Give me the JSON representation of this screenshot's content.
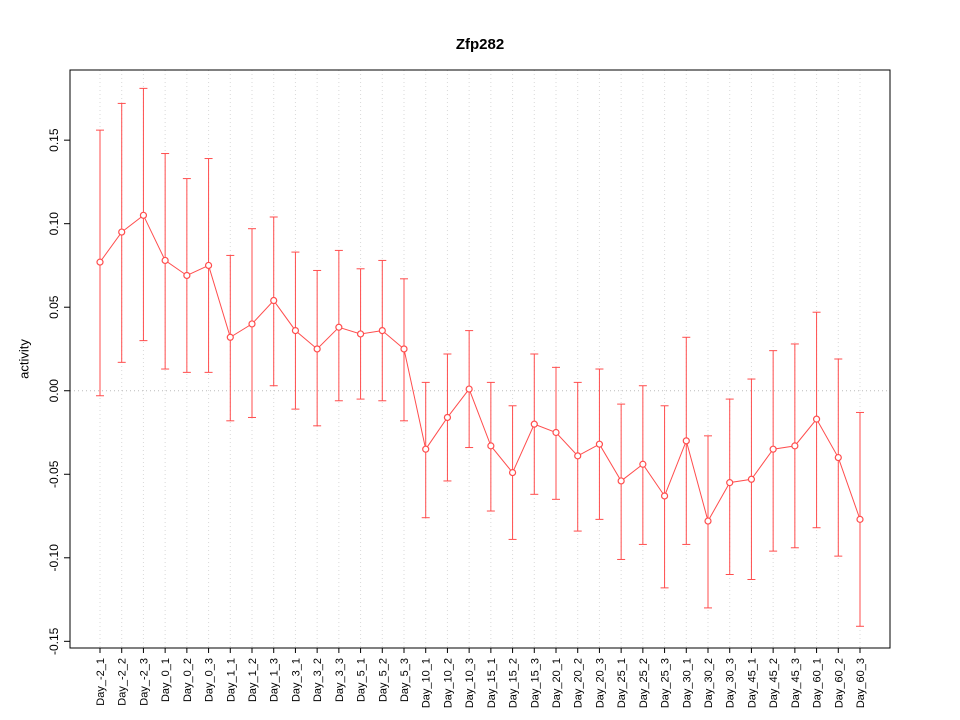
{
  "chart_data": {
    "type": "line",
    "title": "Zfp282",
    "xlabel": "",
    "ylabel": "activity",
    "ylim": [
      -0.154,
      0.192
    ],
    "yticks": [
      -0.15,
      -0.1,
      -0.05,
      0.0,
      0.05,
      0.1,
      0.15
    ],
    "grid": "vertical dotted gridline at each category; horizontal dotted line at y=0",
    "legend": "none",
    "series_color": "#ff4d4d",
    "grid_color": "#d9d9d9",
    "zero_line_color": "#bbbbbb",
    "axis_color": "#000000",
    "marker": "open-circle",
    "error_bars": true,
    "categories": [
      "Day_-2_1",
      "Day_-2_2",
      "Day_-2_3",
      "Day_0_1",
      "Day_0_2",
      "Day_0_3",
      "Day_1_1",
      "Day_1_2",
      "Day_1_3",
      "Day_3_1",
      "Day_3_2",
      "Day_3_3",
      "Day_5_1",
      "Day_5_2",
      "Day_5_3",
      "Day_10_1",
      "Day_10_2",
      "Day_10_3",
      "Day_15_1",
      "Day_15_2",
      "Day_15_3",
      "Day_20_1",
      "Day_20_2",
      "Day_20_3",
      "Day_25_1",
      "Day_25_2",
      "Day_25_3",
      "Day_30_1",
      "Day_30_2",
      "Day_30_3",
      "Day_45_1",
      "Day_45_2",
      "Day_45_3",
      "Day_60_1",
      "Day_60_2",
      "Day_60_3"
    ],
    "means": [
      0.077,
      0.095,
      0.105,
      0.078,
      0.069,
      0.075,
      0.032,
      0.04,
      0.054,
      0.036,
      0.025,
      0.038,
      0.034,
      0.036,
      0.025,
      -0.035,
      -0.016,
      0.001,
      -0.033,
      -0.049,
      -0.02,
      -0.025,
      -0.039,
      -0.032,
      -0.054,
      -0.044,
      -0.063,
      -0.03,
      -0.078,
      -0.055,
      -0.053,
      -0.035,
      -0.033,
      -0.017,
      -0.04,
      -0.077
    ],
    "lower": [
      -0.003,
      0.017,
      0.03,
      0.013,
      0.011,
      0.011,
      -0.018,
      -0.016,
      0.003,
      -0.011,
      -0.021,
      -0.006,
      -0.005,
      -0.006,
      -0.018,
      -0.076,
      -0.054,
      -0.034,
      -0.072,
      -0.089,
      -0.062,
      -0.065,
      -0.084,
      -0.077,
      -0.101,
      -0.092,
      -0.118,
      -0.092,
      -0.13,
      -0.11,
      -0.113,
      -0.096,
      -0.094,
      -0.082,
      -0.099,
      -0.141
    ],
    "upper": [
      0.156,
      0.172,
      0.181,
      0.142,
      0.127,
      0.139,
      0.081,
      0.097,
      0.104,
      0.083,
      0.072,
      0.084,
      0.073,
      0.078,
      0.067,
      0.005,
      0.022,
      0.036,
      0.005,
      -0.009,
      0.022,
      0.014,
      0.005,
      0.013,
      -0.008,
      0.003,
      -0.009,
      0.032,
      -0.027,
      -0.005,
      0.007,
      0.024,
      0.028,
      0.047,
      0.019,
      -0.013
    ]
  }
}
